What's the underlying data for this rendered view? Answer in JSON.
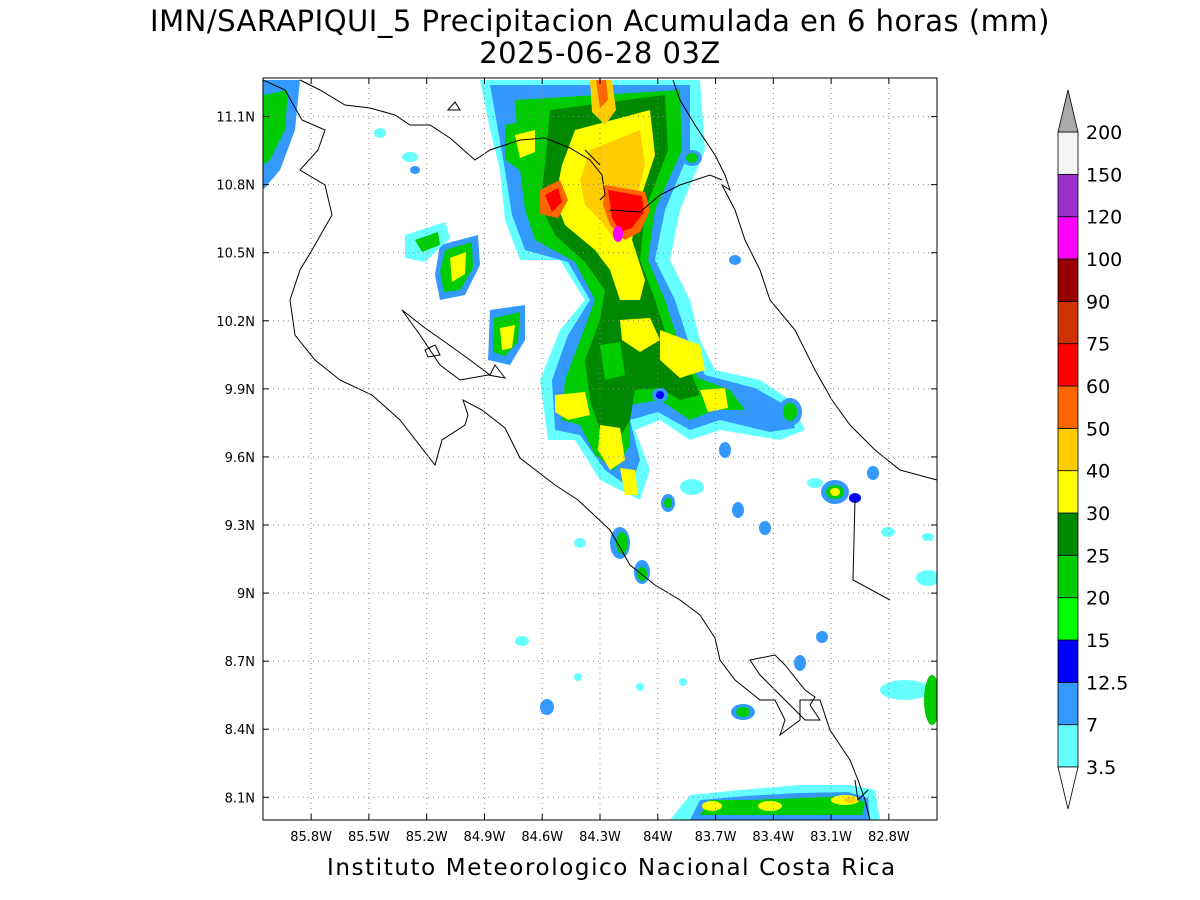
{
  "header": {
    "title": "IMN/SARAPIQUI_5 Precipitacion Acumulada en 6 horas (mm)",
    "subtitle": "2025-06-28 03Z"
  },
  "footer": "Instituto Meteorologico Nacional Costa Rica",
  "map": {
    "lon_range": [
      -86.05,
      -82.55
    ],
    "lat_range": [
      8.0,
      11.27
    ],
    "lat_ticks": [
      "11.1N",
      "10.8N",
      "10.5N",
      "10.2N",
      "9.9N",
      "9.6N",
      "9.3N",
      "9N",
      "8.7N",
      "8.4N",
      "8.1N"
    ],
    "lat_values": [
      11.1,
      10.8,
      10.5,
      10.2,
      9.9,
      9.6,
      9.3,
      9.0,
      8.7,
      8.4,
      8.1
    ],
    "lon_ticks": [
      "85.8W",
      "85.5W",
      "85.2W",
      "84.9W",
      "84.6W",
      "84.3W",
      "84W",
      "83.7W",
      "83.4W",
      "83.1W",
      "82.8W"
    ],
    "lon_values": [
      -85.8,
      -85.5,
      -85.2,
      -84.9,
      -84.6,
      -84.3,
      -84.0,
      -83.7,
      -83.4,
      -83.1,
      -82.8
    ],
    "grid": "dotted"
  },
  "colorbar": {
    "labels": [
      "3.5",
      "7",
      "12.5",
      "15",
      "20",
      "25",
      "30",
      "40",
      "50",
      "60",
      "75",
      "90",
      "100",
      "120",
      "150",
      "200"
    ],
    "colors": [
      "#66ffff",
      "#3399ff",
      "#0000ff",
      "#00ff00",
      "#00cc00",
      "#008800",
      "#ffff00",
      "#ffcc00",
      "#ff6600",
      "#ff0000",
      "#cc3300",
      "#990000",
      "#ff00ff",
      "#9933cc",
      "#f5f5f5",
      "#aaaaaa"
    ]
  }
}
